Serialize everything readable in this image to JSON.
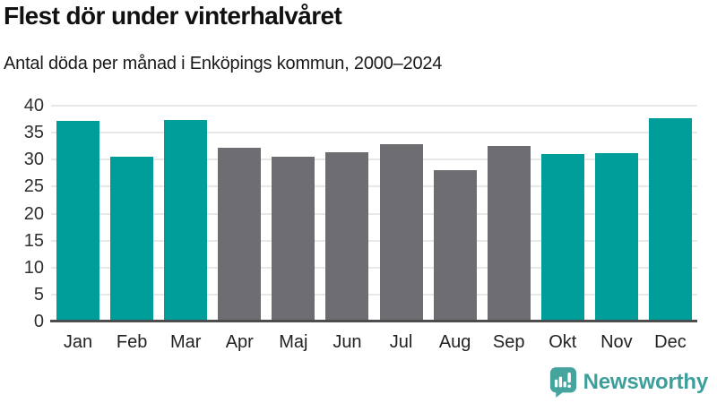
{
  "header": {
    "title": "Flest dör under vinterhalvåret",
    "subtitle": "Antal döda per månad i Enköpings kommun, 2000–2024"
  },
  "footer": {
    "brand": "Newsworthy",
    "logo_icon": "speech-bubble-with-bar-chart-and-exclamation"
  },
  "colors": {
    "winter_bar": "#009e9a",
    "summer_bar": "#6e6e72",
    "logo_teal": "#46a49f",
    "gridline": "#e8e8e8",
    "axis_line": "#4d4d4d"
  },
  "chart_data": {
    "type": "bar",
    "title": "Flest dör under vinterhalvåret",
    "subtitle": "Antal döda per månad i Enköpings kommun, 2000–2024",
    "categories": [
      "Jan",
      "Feb",
      "Mar",
      "Apr",
      "Maj",
      "Jun",
      "Jul",
      "Aug",
      "Sep",
      "Okt",
      "Nov",
      "Dec"
    ],
    "values": [
      37.2,
      30.5,
      37.3,
      32.2,
      30.6,
      31.4,
      32.9,
      28.1,
      32.6,
      31.1,
      31.2,
      37.7
    ],
    "bar_colors": [
      "#009e9a",
      "#009e9a",
      "#009e9a",
      "#6e6e72",
      "#6e6e72",
      "#6e6e72",
      "#6e6e72",
      "#6e6e72",
      "#6e6e72",
      "#009e9a",
      "#009e9a",
      "#009e9a"
    ],
    "color_meaning": "teal = winter half-year months (Jan-Mar, Okt-Dec), gray = summer half-year months (Apr-Sep)",
    "xlabel": "",
    "ylabel": "",
    "ylim": [
      0,
      40
    ],
    "yticks": [
      0,
      5,
      10,
      15,
      20,
      25,
      30,
      35,
      40
    ],
    "grid": "horizontal",
    "legend": "none"
  }
}
